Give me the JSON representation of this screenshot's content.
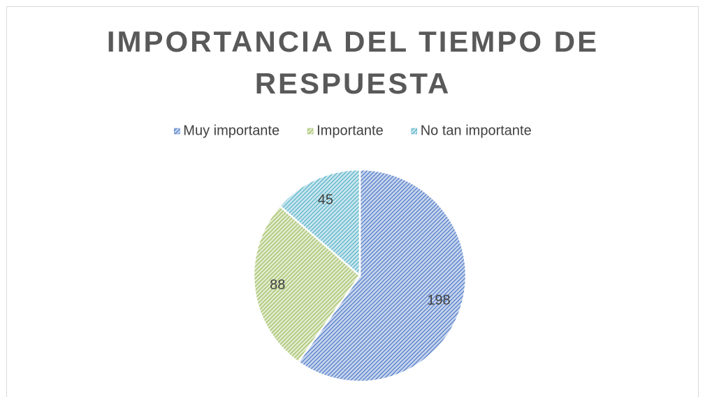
{
  "chart_data": {
    "type": "pie",
    "title": "IMPORTANCIA DEL TIEMPO DE RESPUESTA",
    "categories": [
      "Muy importante",
      "Importante",
      "No tan importante"
    ],
    "values": [
      198,
      88,
      45
    ],
    "colors": [
      "#4472c4",
      "#9bbb59",
      "#4bacc6"
    ],
    "legend": "top"
  }
}
